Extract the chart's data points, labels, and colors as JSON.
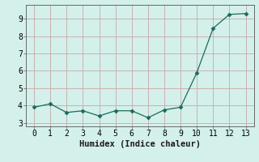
{
  "x": [
    0,
    1,
    2,
    3,
    4,
    5,
    6,
    7,
    8,
    9,
    10,
    11,
    12,
    13
  ],
  "y": [
    3.9,
    4.1,
    3.6,
    3.7,
    3.4,
    3.7,
    3.7,
    3.3,
    3.75,
    3.9,
    5.9,
    8.45,
    9.25,
    9.3
  ],
  "xlabel": "Humidex (Indice chaleur)",
  "ylim": [
    2.8,
    9.8
  ],
  "xlim": [
    -0.5,
    13.5
  ],
  "yticks": [
    3,
    4,
    5,
    6,
    7,
    8,
    9
  ],
  "xticks": [
    0,
    1,
    2,
    3,
    4,
    5,
    6,
    7,
    8,
    9,
    10,
    11,
    12,
    13
  ],
  "line_color": "#1a6b5a",
  "marker": "D",
  "marker_size": 2.5,
  "bg_color": "#d4f0eb",
  "grid_color": "#c8a8a8",
  "label_fontsize": 7.5,
  "tick_fontsize": 7
}
